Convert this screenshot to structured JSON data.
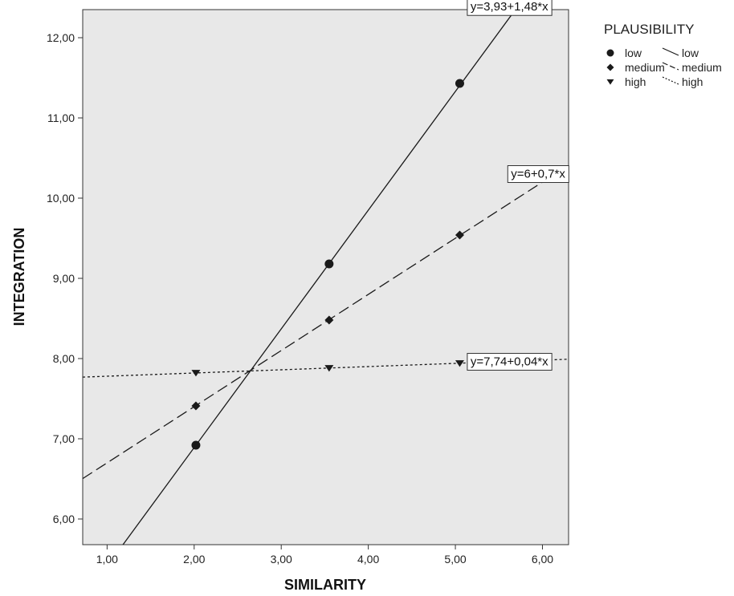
{
  "chart_data": {
    "type": "scatter",
    "xlabel": "SIMILARITY",
    "ylabel": "INTEGRATION",
    "xlim": [
      0.72,
      6.3
    ],
    "ylim": [
      5.68,
      12.35
    ],
    "x_ticks": [
      "1,00",
      "2,00",
      "3,00",
      "4,00",
      "5,00",
      "6,00"
    ],
    "y_ticks": [
      "6,00",
      "7,00",
      "8,00",
      "9,00",
      "10,00",
      "11,00",
      "12,00"
    ],
    "grid": false,
    "legend": {
      "title": "PLAUSIBILITY",
      "placement": "right",
      "marker_entries": [
        "low",
        "medium",
        "high"
      ],
      "line_entries": [
        "low",
        "medium",
        "high"
      ]
    },
    "series": [
      {
        "name": "low",
        "marker": "circle",
        "line_style": "solid",
        "x": [
          2.02,
          3.55,
          5.05
        ],
        "y": [
          6.92,
          9.18,
          11.43
        ],
        "fit": {
          "intercept": 3.93,
          "slope": 1.48,
          "label": "y=3,93+1,48*x"
        }
      },
      {
        "name": "medium",
        "marker": "diamond",
        "line_style": "dashed",
        "x": [
          2.02,
          3.55,
          5.05
        ],
        "y": [
          7.41,
          8.48,
          9.54
        ],
        "fit": {
          "intercept": 6,
          "slope": 0.7,
          "label": "y=6+0,7*x"
        }
      },
      {
        "name": "high",
        "marker": "triangle-down",
        "line_style": "dotted",
        "x": [
          2.02,
          3.55,
          5.05
        ],
        "y": [
          7.82,
          7.88,
          7.94
        ],
        "fit": {
          "intercept": 7.74,
          "slope": 0.04,
          "label": "y=7,74+0,04*x"
        }
      }
    ],
    "colors": {
      "plot_background": "#e8e8e8",
      "ink": "#1a1a1a"
    }
  }
}
